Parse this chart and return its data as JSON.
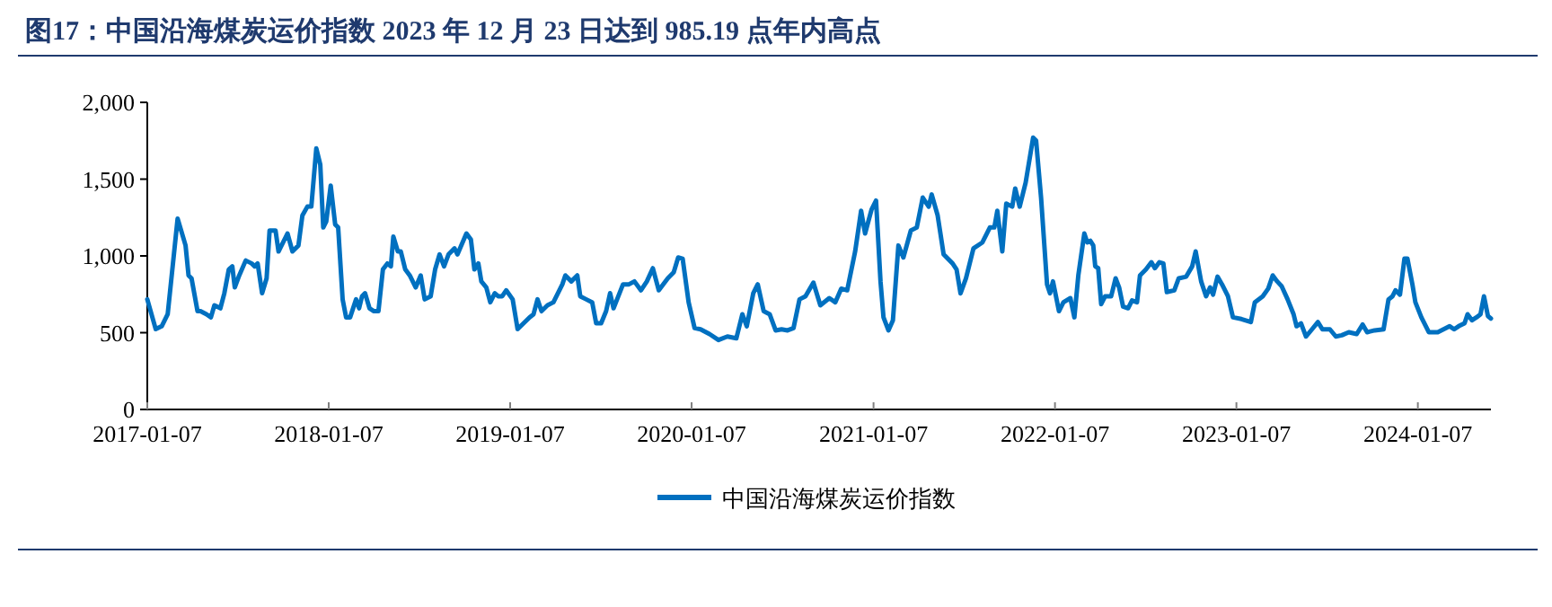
{
  "chart_data": {
    "type": "line",
    "title": "图17：中国沿海煤炭运价指数 2023 年 12 月 23 日达到 985.19 点年内高点",
    "xlim": [
      "2017-01-07",
      "2024-06-02"
    ],
    "xticks": [
      "2017-01-07",
      "2018-01-07",
      "2019-01-07",
      "2020-01-07",
      "2021-01-07",
      "2022-01-07",
      "2023-01-07",
      "2024-01-07"
    ],
    "ylim": [
      0,
      2000
    ],
    "yticks": [
      {
        "value": 0,
        "label": "0"
      },
      {
        "value": 500,
        "label": "500"
      },
      {
        "value": 1000,
        "label": "1,000"
      },
      {
        "value": 1500,
        "label": "1,500"
      },
      {
        "value": 2000,
        "label": "2,000"
      }
    ],
    "grid": false,
    "legend": "bottom",
    "marker": "none",
    "line_style": "solid",
    "series": [
      {
        "name": "中国沿海煤炭运价指数",
        "color": "#0070c0",
        "x": [
          "2017-01-07",
          "2017-01-24",
          "2017-02-05",
          "2017-02-17",
          "2017-03-09",
          "2017-03-25",
          "2017-03-31",
          "2017-04-06",
          "2017-04-18",
          "2017-04-24",
          "2017-05-06",
          "2017-05-15",
          "2017-05-22",
          "2017-06-03",
          "2017-06-11",
          "2017-06-20",
          "2017-06-27",
          "2017-07-02",
          "2017-07-11",
          "2017-07-24",
          "2017-08-05",
          "2017-08-11",
          "2017-08-17",
          "2017-08-26",
          "2017-09-04",
          "2017-09-10",
          "2017-09-22",
          "2017-09-28",
          "2017-10-16",
          "2017-10-26",
          "2017-11-07",
          "2017-11-15",
          "2017-11-25",
          "2017-12-03",
          "2017-12-13",
          "2017-12-21",
          "2017-12-27",
          "2018-01-02",
          "2018-01-11",
          "2018-01-20",
          "2018-01-26",
          "2018-02-04",
          "2018-02-11",
          "2018-02-19",
          "2018-03-03",
          "2018-03-09",
          "2018-03-15",
          "2018-03-21",
          "2018-03-30",
          "2018-04-08",
          "2018-04-17",
          "2018-04-26",
          "2018-05-05",
          "2018-05-12",
          "2018-05-17",
          "2018-05-26",
          "2018-06-01",
          "2018-06-10",
          "2018-06-19",
          "2018-07-01",
          "2018-07-11",
          "2018-07-19",
          "2018-07-31",
          "2018-08-09",
          "2018-08-18",
          "2018-08-27",
          "2018-09-05",
          "2018-09-17",
          "2018-09-23",
          "2018-10-11",
          "2018-10-20",
          "2018-10-27",
          "2018-11-04",
          "2018-11-10",
          "2018-11-20",
          "2018-11-28",
          "2018-12-07",
          "2018-12-14",
          "2018-12-22",
          "2018-12-30",
          "2019-01-12",
          "2019-01-22",
          "2019-02-03",
          "2019-02-15",
          "2019-02-23",
          "2019-03-03",
          "2019-03-11",
          "2019-03-23",
          "2019-04-04",
          "2019-04-22",
          "2019-04-28",
          "2019-05-10",
          "2019-05-22",
          "2019-05-28",
          "2019-06-09",
          "2019-06-21",
          "2019-06-29",
          "2019-07-09",
          "2019-07-19",
          "2019-07-27",
          "2019-08-03",
          "2019-08-22",
          "2019-09-03",
          "2019-09-14",
          "2019-09-27",
          "2019-10-09",
          "2019-10-21",
          "2019-11-02",
          "2019-11-20",
          "2019-12-02",
          "2019-12-11",
          "2019-12-20",
          "2020-01-01",
          "2020-01-13",
          "2020-01-25",
          "2020-02-12",
          "2020-03-01",
          "2020-03-19",
          "2020-04-06",
          "2020-04-18",
          "2020-04-27",
          "2020-05-10",
          "2020-05-19",
          "2020-05-31",
          "2020-06-12",
          "2020-06-24",
          "2020-07-06",
          "2020-07-18",
          "2020-07-30",
          "2020-08-11",
          "2020-08-23",
          "2020-09-08",
          "2020-09-22",
          "2020-10-10",
          "2020-10-22",
          "2020-11-03",
          "2020-11-15",
          "2020-12-01",
          "2020-12-13",
          "2020-12-21",
          "2021-01-03",
          "2021-01-12",
          "2021-01-21",
          "2021-01-27",
          "2021-02-06",
          "2021-02-15",
          "2021-02-26",
          "2021-03-08",
          "2021-03-23",
          "2021-04-04",
          "2021-04-16",
          "2021-04-28",
          "2021-05-04",
          "2021-05-16",
          "2021-05-28",
          "2021-06-15",
          "2021-06-23",
          "2021-07-01",
          "2021-07-12",
          "2021-07-27",
          "2021-08-14",
          "2021-08-29",
          "2021-09-07",
          "2021-09-13",
          "2021-09-23",
          "2021-10-01",
          "2021-10-13",
          "2021-10-19",
          "2021-10-28",
          "2021-11-09",
          "2021-11-24",
          "2021-11-30",
          "2021-12-10",
          "2021-12-22",
          "2021-12-28",
          "2022-01-03",
          "2022-01-15",
          "2022-01-24",
          "2022-02-07",
          "2022-02-15",
          "2022-02-23",
          "2022-03-07",
          "2022-03-13",
          "2022-03-19",
          "2022-03-25",
          "2022-03-29",
          "2022-04-04",
          "2022-04-10",
          "2022-04-18",
          "2022-04-30",
          "2022-05-09",
          "2022-05-16",
          "2022-05-24",
          "2022-06-03",
          "2022-06-11",
          "2022-06-21",
          "2022-06-27",
          "2022-07-09",
          "2022-07-20",
          "2022-07-27",
          "2022-08-05",
          "2022-08-13",
          "2022-08-20",
          "2022-09-04",
          "2022-09-13",
          "2022-09-28",
          "2022-10-10",
          "2022-10-17",
          "2022-10-28",
          "2022-11-07",
          "2022-11-15",
          "2022-11-21",
          "2022-11-30",
          "2022-12-09",
          "2022-12-21",
          "2022-12-31",
          "2023-01-17",
          "2023-02-05",
          "2023-02-13",
          "2023-03-01",
          "2023-03-12",
          "2023-03-21",
          "2023-03-30",
          "2023-04-08",
          "2023-04-20",
          "2023-05-02",
          "2023-05-08",
          "2023-05-17",
          "2023-05-27",
          "2023-06-08",
          "2023-06-20",
          "2023-06-29",
          "2023-07-14",
          "2023-07-26",
          "2023-08-07",
          "2023-08-21",
          "2023-09-06",
          "2023-09-18",
          "2023-09-27",
          "2023-10-12",
          "2023-10-30",
          "2023-11-09",
          "2023-11-17",
          "2023-11-23",
          "2023-12-02",
          "2023-12-11",
          "2023-12-17",
          "2023-12-27",
          "2024-01-02",
          "2024-01-14",
          "2024-01-29",
          "2024-02-16",
          "2024-03-11",
          "2024-03-20",
          "2024-03-29",
          "2024-04-10",
          "2024-04-16",
          "2024-04-25",
          "2024-05-04",
          "2024-05-12",
          "2024-05-19",
          "2024-05-27",
          "2024-06-02"
        ],
        "values": [
          717,
          523,
          542,
          620,
          1243,
          1068,
          873,
          854,
          640,
          640,
          620,
          600,
          678,
          659,
          757,
          912,
          932,
          795,
          873,
          970,
          951,
          932,
          951,
          757,
          854,
          1165,
          1165,
          1029,
          1146,
          1029,
          1068,
          1263,
          1321,
          1321,
          1700,
          1594,
          1185,
          1224,
          1458,
          1205,
          1185,
          717,
          600,
          600,
          717,
          659,
          737,
          757,
          659,
          640,
          640,
          912,
          951,
          932,
          1126,
          1029,
          1029,
          912,
          873,
          795,
          873,
          717,
          737,
          912,
          1010,
          932,
          1010,
          1049,
          1010,
          1146,
          1107,
          912,
          951,
          834,
          795,
          698,
          757,
          737,
          737,
          776,
          717,
          523,
          561,
          600,
          620,
          717,
          640,
          678,
          698,
          815,
          873,
          834,
          873,
          737,
          717,
          698,
          561,
          561,
          640,
          757,
          659,
          815,
          815,
          834,
          776,
          834,
          920,
          776,
          854,
          893,
          990,
          982,
          698,
          530,
          522,
          491,
          452,
          475,
          463,
          620,
          542,
          756,
          815,
          640,
          620,
          515,
          522,
          515,
          530,
          717,
          737,
          826,
          678,
          725,
          698,
          787,
          776,
          1029,
          1294,
          1146,
          1302,
          1360,
          834,
          600,
          515,
          581,
          1068,
          990,
          1165,
          1185,
          1380,
          1321,
          1400,
          1263,
          1010,
          951,
          912,
          756,
          854,
          1049,
          1088,
          1185,
          1185,
          1294,
          1029,
          1341,
          1321,
          1439,
          1321,
          1477,
          1770,
          1751,
          1380,
          815,
          756,
          834,
          640,
          698,
          725,
          600,
          873,
          1146,
          1088,
          1099,
          1068,
          932,
          920,
          686,
          737,
          737,
          854,
          795,
          670,
          659,
          710,
          698,
          873,
          912,
          959,
          920,
          959,
          951,
          764,
          776,
          854,
          865,
          932,
          1029,
          834,
          737,
          795,
          748,
          865,
          815,
          737,
          600,
          589,
          569,
          698,
          737,
          787,
          873,
          834,
          803,
          717,
          620,
          542,
          561,
          475,
          522,
          569,
          522,
          522,
          475,
          483,
          503,
          491,
          553,
          503,
          515,
          522,
          717,
          737,
          776,
          748,
          982,
          982,
          815,
          698,
          600,
          503,
          503,
          542,
          522,
          542,
          561,
          620,
          581,
          600,
          620,
          737,
          608,
          592
        ]
      }
    ]
  }
}
